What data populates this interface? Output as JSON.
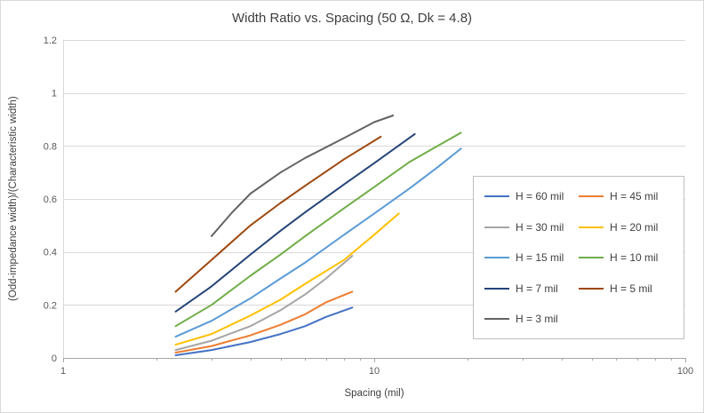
{
  "chart_data": {
    "type": "line",
    "title": "Width Ratio vs. Spacing (50 Ω, Dk = 4.8)",
    "xlabel": "Spacing (mil)",
    "ylabel": "(Odd-impedance width)/(Characteristic width)",
    "x_scale": "log",
    "xlim": [
      1,
      100
    ],
    "ylim": [
      0,
      1.2
    ],
    "y_tick_step": 0.2,
    "y_tick_labels": [
      "0",
      "0.2",
      "0.4",
      "0.6",
      "0.8",
      "1",
      "1.2"
    ],
    "x_major_ticks": [
      1,
      10,
      100
    ],
    "grid": "horizontal",
    "legend": {
      "position": "inside-right",
      "columns": 2
    },
    "colors": {
      "gridline": "#d9d9d9",
      "left_axis_line": "#d9d9d9",
      "axis_line": "#a6a6a6",
      "tick_text": "#595959",
      "title_text": "#404040",
      "legend_border": "#bfbfbf",
      "background": "#ffffff",
      "frame_border": "#d9d9d9"
    },
    "series": [
      {
        "name": "H = 60 mil",
        "color": "#4472C4",
        "x": [
          2.3,
          3,
          4,
          5,
          6,
          7,
          8.5
        ],
        "y": [
          0.01,
          0.03,
          0.06,
          0.09,
          0.12,
          0.155,
          0.19
        ]
      },
      {
        "name": "H = 45 mil",
        "color": "#ED7D31",
        "x": [
          2.3,
          3,
          4,
          5,
          6,
          7,
          8.5
        ],
        "y": [
          0.02,
          0.045,
          0.085,
          0.125,
          0.165,
          0.21,
          0.25
        ]
      },
      {
        "name": "H = 30 mil",
        "color": "#A5A5A5",
        "x": [
          2.3,
          3,
          4,
          5,
          6,
          7,
          8.5
        ],
        "y": [
          0.03,
          0.065,
          0.12,
          0.18,
          0.24,
          0.3,
          0.385
        ]
      },
      {
        "name": "H = 20 mil",
        "color": "#FFC000",
        "x": [
          2.3,
          3,
          4,
          5,
          6,
          8,
          10,
          12
        ],
        "y": [
          0.05,
          0.09,
          0.16,
          0.22,
          0.28,
          0.37,
          0.465,
          0.545
        ]
      },
      {
        "name": "H = 15 mil",
        "color": "#5B9BD5",
        "x": [
          2.3,
          3,
          4,
          5,
          6,
          8,
          10,
          13,
          16,
          19
        ],
        "y": [
          0.08,
          0.14,
          0.225,
          0.3,
          0.36,
          0.465,
          0.545,
          0.64,
          0.72,
          0.79
        ]
      },
      {
        "name": "H = 10 mil",
        "color": "#70AD47",
        "x": [
          2.3,
          3,
          4,
          5,
          6,
          8,
          10,
          13,
          16,
          19
        ],
        "y": [
          0.12,
          0.2,
          0.31,
          0.39,
          0.46,
          0.565,
          0.645,
          0.74,
          0.8,
          0.85
        ]
      },
      {
        "name": "H = 7 mil",
        "color": "#264478",
        "x": [
          2.3,
          3,
          4,
          5,
          6,
          8,
          10,
          13.5
        ],
        "y": [
          0.175,
          0.27,
          0.39,
          0.48,
          0.55,
          0.655,
          0.735,
          0.845
        ]
      },
      {
        "name": "H = 5 mil",
        "color": "#9E480E",
        "x": [
          2.3,
          3,
          4,
          5,
          6,
          8,
          10.5
        ],
        "y": [
          0.25,
          0.37,
          0.5,
          0.585,
          0.65,
          0.75,
          0.835
        ]
      },
      {
        "name": "H = 3 mil",
        "color": "#636363",
        "x": [
          3,
          3.5,
          4,
          5,
          6,
          8,
          10,
          11.5
        ],
        "y": [
          0.46,
          0.55,
          0.62,
          0.7,
          0.755,
          0.83,
          0.89,
          0.915
        ]
      }
    ]
  }
}
